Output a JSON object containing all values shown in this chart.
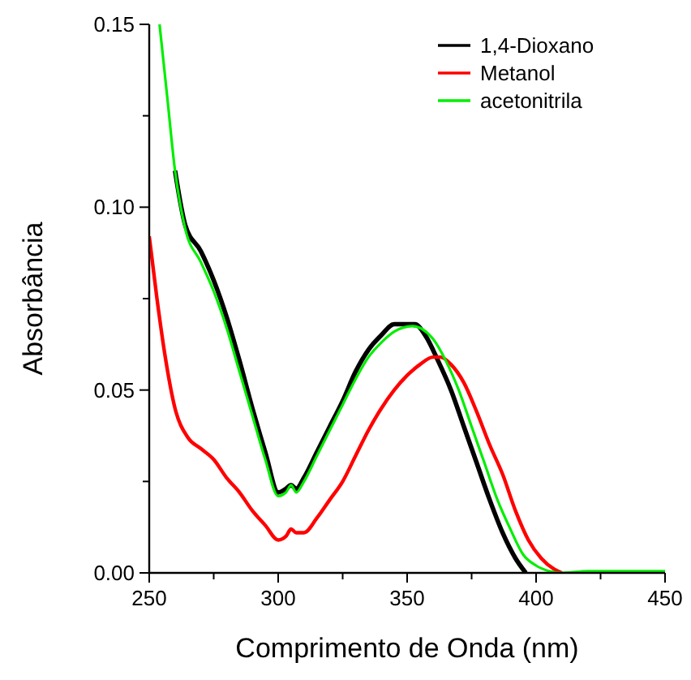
{
  "chart_data": {
    "type": "line",
    "xlabel": "Comprimento de Onda (nm)",
    "ylabel": "Absorbância",
    "xlim": [
      250,
      450
    ],
    "ylim": [
      0,
      0.15
    ],
    "xticks": [
      250,
      {
        "value": 275,
        "label": null
      },
      300,
      {
        "value": 325,
        "label": null
      },
      350,
      {
        "value": 375,
        "label": null
      },
      400,
      {
        "value": 425,
        "label": null
      },
      450
    ],
    "yticks": [
      {
        "value": 0,
        "label": "0.00"
      },
      {
        "value": 0.025,
        "label": null
      },
      {
        "value": 0.05,
        "label": "0.05"
      },
      {
        "value": 0.075,
        "label": null
      },
      {
        "value": 0.1,
        "label": "0.10"
      },
      {
        "value": 0.125,
        "label": null
      },
      {
        "value": 0.15,
        "label": "0.15"
      }
    ],
    "grid": false,
    "legend": "top right",
    "line_style": "solid",
    "marker": "none",
    "series": [
      {
        "name": "1,4-Dioxano",
        "color": "#000000",
        "x": [
          260,
          264,
          270,
          275,
          280,
          285,
          290,
          295,
          300,
          303,
          305,
          307,
          310,
          315,
          320,
          325,
          330,
          335,
          340,
          345,
          350,
          353,
          357,
          362,
          367,
          372,
          377,
          382,
          387,
          392,
          396
        ],
        "values": [
          0.11,
          0.095,
          0.088,
          0.08,
          0.07,
          0.058,
          0.045,
          0.033,
          0.022,
          0.023,
          0.024,
          0.023,
          0.026,
          0.033,
          0.04,
          0.047,
          0.055,
          0.061,
          0.065,
          0.068,
          0.068,
          0.068,
          0.065,
          0.058,
          0.05,
          0.04,
          0.03,
          0.02,
          0.011,
          0.004,
          0.0
        ]
      },
      {
        "name": "Metanol",
        "color": "#ff0000",
        "x": [
          250,
          253,
          256,
          260,
          265,
          270,
          275,
          280,
          285,
          290,
          295,
          300,
          303,
          305,
          307,
          310,
          315,
          320,
          325,
          330,
          335,
          340,
          345,
          350,
          355,
          360,
          363,
          367,
          372,
          377,
          382,
          387,
          392,
          397,
          402,
          407,
          410
        ],
        "values": [
          0.092,
          0.075,
          0.06,
          0.045,
          0.037,
          0.034,
          0.031,
          0.026,
          0.022,
          0.017,
          0.013,
          0.009,
          0.01,
          0.012,
          0.011,
          0.011,
          0.015,
          0.02,
          0.025,
          0.032,
          0.039,
          0.045,
          0.05,
          0.054,
          0.057,
          0.059,
          0.059,
          0.057,
          0.052,
          0.044,
          0.035,
          0.027,
          0.017,
          0.009,
          0.004,
          0.001,
          0.0
        ]
      },
      {
        "name": "acetonitrila",
        "color": "#00ee00",
        "x": [
          254,
          257,
          260,
          264,
          270,
          275,
          280,
          285,
          290,
          295,
          300,
          303,
          305,
          307,
          310,
          315,
          320,
          325,
          330,
          335,
          340,
          345,
          352,
          360,
          365,
          370,
          375,
          380,
          385,
          390,
          395,
          400,
          405,
          410,
          420,
          435,
          450
        ],
        "values": [
          0.15,
          0.13,
          0.11,
          0.094,
          0.085,
          0.077,
          0.067,
          0.055,
          0.043,
          0.031,
          0.021,
          0.022,
          0.024,
          0.022,
          0.025,
          0.032,
          0.039,
          0.046,
          0.053,
          0.059,
          0.063,
          0.066,
          0.0675,
          0.064,
          0.058,
          0.05,
          0.04,
          0.03,
          0.02,
          0.012,
          0.005,
          0.002,
          0.0005,
          0.0,
          0.0005,
          0.0005,
          0.0005
        ]
      }
    ]
  }
}
